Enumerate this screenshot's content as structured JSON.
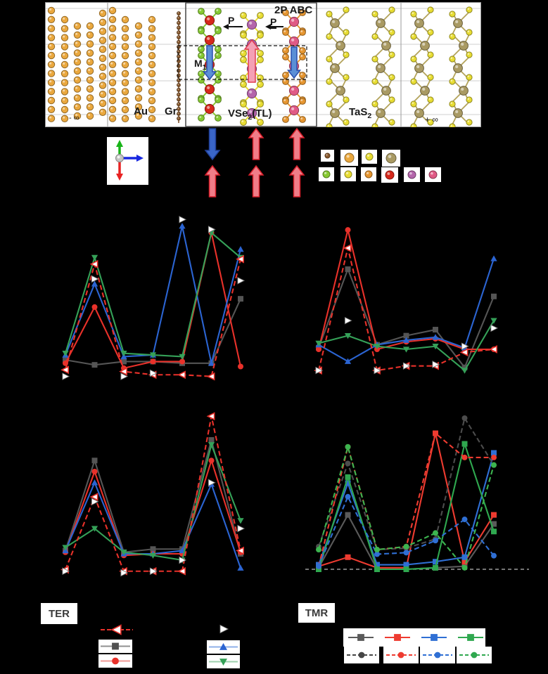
{
  "structure": {
    "labels": {
      "minus_inf": "- ∞",
      "plus_inf": "+ ∞",
      "au": "Au",
      "gr": "Gr",
      "vse2_pre": "VSe",
      "vse2_sub": "2",
      "vse2_post": "(TL)",
      "tas2_pre": "TaS",
      "tas2_sub": "2",
      "stacking": "2P ABC",
      "p1": "P",
      "p2": "P",
      "m_pre": "M",
      "m_sub": "1"
    },
    "atom_colors": {
      "gold": "#eaa83e",
      "brown": "#8a5a2e",
      "green_se": "#86c932",
      "yellow_s": "#e8dd33",
      "khaki_ta": "#a99a63",
      "red_v": "#d5281b",
      "purple_v": "#b465ab",
      "pink_v": "#e05a85",
      "orange_se": "#e69630"
    },
    "atom_legend": {
      "row1": [
        {
          "name": "brown-small",
          "color": "#8a5a2e",
          "r": 3.5
        },
        {
          "name": "gold-large",
          "color": "#eaa83e",
          "r": 6.5
        },
        {
          "name": "yellow",
          "color": "#e8dd33",
          "r": 5
        },
        {
          "name": "khaki-large",
          "color": "#a99a63",
          "r": 7
        }
      ],
      "row2": [
        {
          "name": "green",
          "color": "#86c932",
          "r": 5
        },
        {
          "name": "yellow-2",
          "color": "#e8dd33",
          "r": 5
        },
        {
          "name": "orange",
          "color": "#e69630",
          "r": 5
        },
        {
          "name": "red",
          "color": "#d5281b",
          "r": 6
        },
        {
          "name": "purple",
          "color": "#b465ab",
          "r": 5.5
        },
        {
          "name": "pink",
          "color": "#e05a85",
          "r": 5.5
        }
      ]
    },
    "magnetization_arrows": {
      "row1": [
        "down-blue",
        "up-red",
        "up-red"
      ],
      "row2": [
        "up-red",
        "up-red",
        "up-red"
      ]
    }
  },
  "legends": {
    "ter": {
      "title": "TER",
      "entries": [
        {
          "name": "red-open-left-triangle-dashed",
          "marker": "triangle-left",
          "color": "#e8312a",
          "dash": "dashed",
          "open": true,
          "msize": 6.5
        },
        {
          "name": "white-right-triangle",
          "marker": "triangle-right",
          "color": "#ffffff",
          "dash": "none",
          "mstroke": "#888888",
          "msize": 5.5
        },
        {
          "name": "gray-square",
          "marker": "square",
          "color": "#505050",
          "line_color": "#909090",
          "dash": "solid",
          "msize": 5.5
        },
        {
          "name": "red-circle",
          "marker": "circle",
          "color": "#e8312a",
          "line_color": "#f09a96",
          "dash": "solid",
          "msize": 5.5
        },
        {
          "name": "blue-up-triangle",
          "marker": "triangle-up",
          "color": "#2b64d2",
          "line_color": "#8fb0e8",
          "dash": "solid",
          "msize": 5.5
        },
        {
          "name": "green-down-triangle",
          "marker": "triangle-down",
          "color": "#35a158",
          "line_color": "#9ed0ae",
          "dash": "solid",
          "msize": 5.5
        }
      ]
    },
    "tmr": {
      "title": "TMR",
      "solid_row": {
        "marker": "square",
        "dash": "solid",
        "colors": [
          "#5a5a5a",
          "#ee3b30",
          "#2f6fd4",
          "#2fa84f"
        ]
      },
      "dashed_row": {
        "marker": "circle",
        "dash": "dashed",
        "colors": [
          "#454545",
          "#ee3b30",
          "#2f6fd4",
          "#2fa84f"
        ]
      }
    }
  },
  "chart_data": [
    {
      "id": "top-left",
      "type": "line",
      "title": "",
      "axes_visible": false,
      "x": [
        1,
        2,
        3,
        4,
        5,
        6,
        7
      ],
      "ylim": [
        0,
        100
      ],
      "ylabel": "arb. units (labels not visible)",
      "series": [
        {
          "name": "gray-squares",
          "color": "#555555",
          "marker": "square",
          "dash": "solid",
          "values": [
            14,
            11,
            13,
            13,
            12,
            12,
            51
          ]
        },
        {
          "name": "red-circles",
          "color": "#e8312a",
          "marker": "circle",
          "dash": "solid",
          "values": [
            12,
            46,
            9,
            13,
            13,
            91,
            10
          ]
        },
        {
          "name": "blue-up-triangles",
          "color": "#2b64d2",
          "marker": "triangle-up",
          "dash": "solid",
          "values": [
            17,
            60,
            16,
            17,
            95,
            12,
            81
          ]
        },
        {
          "name": "green-down-triangles",
          "color": "#35a158",
          "marker": "triangle-down",
          "dash": "solid",
          "values": [
            18,
            76,
            18,
            17,
            16,
            91,
            76
          ]
        },
        {
          "name": "red-open-left-triangles",
          "color": "#e8312a",
          "marker": "triangle-left",
          "dash": "dashed",
          "open": true,
          "values": [
            8,
            72,
            7,
            5,
            5,
            4,
            75
          ]
        },
        {
          "name": "white-right-triangles",
          "color": "#ffffff",
          "marker": "triangle-right",
          "dash": "none",
          "mstroke": "#777777",
          "values": [
            4,
            63,
            4,
            6,
            99,
            93,
            62
          ]
        }
      ]
    },
    {
      "id": "top-right",
      "type": "line",
      "title": "",
      "axes_visible": false,
      "x": [
        1,
        2,
        3,
        4,
        5,
        6,
        7
      ],
      "ylim": [
        0,
        100
      ],
      "ylabel": "arb. units (labels not visible)",
      "series": [
        {
          "name": "gray-squares",
          "color": "#555555",
          "marker": "square",
          "dash": "solid",
          "values": [
            21,
            73,
            23,
            29,
            33,
            8,
            55
          ]
        },
        {
          "name": "red-circles",
          "color": "#e8312a",
          "marker": "circle",
          "dash": "solid",
          "values": [
            20,
            99,
            20,
            25,
            27,
            20,
            20
          ]
        },
        {
          "name": "blue-up-triangles",
          "color": "#2b64d2",
          "marker": "triangle-up",
          "dash": "solid",
          "values": [
            23,
            12,
            23,
            26,
            28,
            21,
            80
          ]
        },
        {
          "name": "green-down-triangles",
          "color": "#35a158",
          "marker": "triangle-down",
          "dash": "solid",
          "values": [
            24,
            29,
            22,
            20,
            22,
            6,
            39
          ]
        },
        {
          "name": "red-open-left-triangles",
          "color": "#e8312a",
          "marker": "triangle-left",
          "dash": "dashed",
          "open": true,
          "values": [
            6,
            87,
            6,
            9,
            9,
            18,
            20
          ]
        },
        {
          "name": "white-right-triangles",
          "color": "#ffffff",
          "marker": "triangle-right",
          "dash": "none",
          "mstroke": "#777777",
          "values": [
            6,
            39,
            6,
            9,
            10,
            22,
            34
          ]
        }
      ]
    },
    {
      "id": "bottom-left",
      "type": "line",
      "title": "",
      "axes_visible": false,
      "x": [
        1,
        2,
        3,
        4,
        5,
        6,
        7
      ],
      "ylim": [
        0,
        100
      ],
      "ylabel": "arb. units (labels not visible)",
      "series": [
        {
          "name": "gray-squares",
          "color": "#555555",
          "marker": "square",
          "dash": "solid",
          "values": [
            14,
            71,
            13,
            15,
            15,
            84,
            12
          ]
        },
        {
          "name": "red-circles",
          "color": "#e8312a",
          "marker": "circle",
          "dash": "solid",
          "values": [
            13,
            64,
            11,
            12,
            12,
            71,
            13
          ]
        },
        {
          "name": "blue-up-triangles",
          "color": "#2b64d2",
          "marker": "triangle-up",
          "dash": "solid",
          "values": [
            14,
            57,
            12,
            12,
            14,
            56,
            3
          ]
        },
        {
          "name": "green-down-triangles",
          "color": "#35a158",
          "marker": "triangle-down",
          "dash": "solid",
          "values": [
            16,
            28,
            13,
            11,
            8,
            81,
            33
          ]
        },
        {
          "name": "red-open-left-triangles",
          "color": "#e8312a",
          "marker": "triangle-left",
          "dash": "dashed",
          "open": true,
          "values": [
            2,
            48,
            1,
            1,
            1,
            99,
            14
          ]
        },
        {
          "name": "white-right-triangles",
          "color": "#ffffff",
          "marker": "triangle-right",
          "dash": "none",
          "mstroke": "#777777",
          "values": [
            1,
            45,
            0,
            1,
            8,
            57,
            28
          ]
        }
      ]
    },
    {
      "id": "bottom-right",
      "type": "line",
      "title": "",
      "axes_visible": false,
      "zero_line": true,
      "x": [
        1,
        2,
        3,
        4,
        5,
        6,
        7
      ],
      "ylim": [
        0,
        100
      ],
      "ylabel": "arb. units (labels not visible)",
      "series": [
        {
          "name": "gray-squares-solid",
          "color": "#5a5a5a",
          "marker": "square",
          "dash": "solid",
          "values": [
            1,
            36,
            0,
            0,
            1,
            2,
            30
          ]
        },
        {
          "name": "red-squares-solid",
          "color": "#ee3b30",
          "marker": "square",
          "dash": "solid",
          "values": [
            2,
            8,
            1,
            1,
            90,
            5,
            36
          ]
        },
        {
          "name": "blue-squares-solid",
          "color": "#2f6fd4",
          "marker": "square",
          "dash": "solid",
          "values": [
            3,
            57,
            3,
            3,
            5,
            8,
            77
          ]
        },
        {
          "name": "green-squares-solid",
          "color": "#2fa84f",
          "marker": "square",
          "dash": "solid",
          "values": [
            0,
            61,
            0,
            0,
            1,
            83,
            25
          ]
        },
        {
          "name": "gray-circles-dashed",
          "color": "#4c4c4c",
          "marker": "circle",
          "dash": "dashed",
          "values": [
            15,
            70,
            13,
            14,
            20,
            100,
            69
          ]
        },
        {
          "name": "red-circles-dashed",
          "color": "#ee3b30",
          "marker": "circle",
          "dash": "dashed",
          "values": [
            2,
            81,
            13,
            15,
            90,
            74,
            74
          ]
        },
        {
          "name": "blue-circles-dashed",
          "color": "#2f6fd4",
          "marker": "circle",
          "dash": "dashed",
          "values": [
            2,
            48,
            10,
            11,
            19,
            33,
            9
          ]
        },
        {
          "name": "green-circles-dashed",
          "color": "#3cb44f",
          "marker": "circle",
          "dash": "dashed",
          "values": [
            13,
            81,
            13,
            15,
            24,
            1,
            69
          ]
        }
      ]
    }
  ]
}
